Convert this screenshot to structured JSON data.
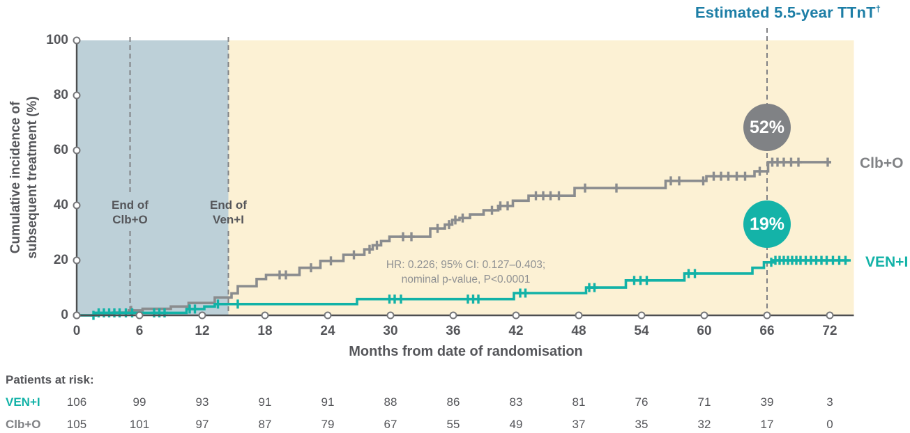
{
  "title": {
    "text": "Estimated 5.5-year TTnT",
    "superscript": "†"
  },
  "colors": {
    "ven_i": "#12b2a7",
    "clb_o": "#8a8c8e",
    "badge_ven": "#14b3a8",
    "badge_clb": "#808285",
    "shade_early": "#bdd0d8",
    "shade_late": "#fcf1d4",
    "title_blue": "#1d7ea6",
    "text_gray": "#55565a",
    "annotation_gray": "#8f9193",
    "axis": "#4d4e50",
    "dashed_line": "#808184",
    "tick_circle_stroke": "#76777a"
  },
  "chart_data": {
    "type": "line",
    "subtype": "step-cumulative-incidence",
    "title": "Estimated 5.5-year TTnT†",
    "xlabel": "Months from date of randomisation",
    "ylabel": "Cumulative incidence of subsequent treatment (%)",
    "xlim": [
      0,
      74.3
    ],
    "ylim": [
      0,
      100
    ],
    "x_ticks": [
      0,
      6,
      12,
      18,
      24,
      30,
      36,
      42,
      48,
      54,
      60,
      66,
      72
    ],
    "y_ticks": [
      0,
      20,
      40,
      60,
      80,
      100
    ],
    "grid": false,
    "legend_position": "right-of-curves",
    "shaded_periods": [
      {
        "name": "early-treatment-period",
        "from_month": 0,
        "to_month": 14.5,
        "color_key": "shade_early"
      },
      {
        "name": "post-treatment-period",
        "from_month": 14.5,
        "to_month": 74.3,
        "color_key": "shade_late"
      }
    ],
    "series": [
      {
        "name": "Clb+O",
        "color_key": "clb_o",
        "estimate_at_66_months_pct": 52,
        "steps": [
          [
            0,
            0
          ],
          [
            2,
            0.5
          ],
          [
            3.5,
            1
          ],
          [
            5,
            1.8
          ],
          [
            6.3,
            2.4
          ],
          [
            9,
            3.2
          ],
          [
            10.7,
            4.5
          ],
          [
            13.2,
            6.5
          ],
          [
            14.8,
            8
          ],
          [
            15.4,
            10.6
          ],
          [
            17.2,
            13.2
          ],
          [
            18.1,
            14.7
          ],
          [
            21.3,
            17.3
          ],
          [
            23.3,
            19.8
          ],
          [
            25.5,
            22
          ],
          [
            27.5,
            24
          ],
          [
            28.3,
            25.5
          ],
          [
            29.1,
            27
          ],
          [
            29.9,
            28.6
          ],
          [
            33.8,
            31.6
          ],
          [
            35.2,
            33
          ],
          [
            35.9,
            34.7
          ],
          [
            36.6,
            35.4
          ],
          [
            37.6,
            36.7
          ],
          [
            38.9,
            38.2
          ],
          [
            40.3,
            39.8
          ],
          [
            41.7,
            41.7
          ],
          [
            43.2,
            43.5
          ],
          [
            47.6,
            46.3
          ],
          [
            56.3,
            48.9
          ],
          [
            60.2,
            50.6
          ],
          [
            64.8,
            52.4
          ],
          [
            66.1,
            55.7
          ]
        ],
        "end_month": 72.1,
        "censor_months": [
          5.2,
          19.4,
          20,
          22.4,
          24.3,
          26.5,
          28,
          28.7,
          31.2,
          32,
          34.5,
          35.6,
          36.2,
          36.9,
          39.7,
          40.5,
          41.2,
          43.9,
          44.6,
          45.3,
          46.1,
          48.6,
          51.6,
          56.8,
          57.6,
          59.9,
          60.9,
          61.6,
          62.3,
          63.1,
          63.9,
          65.3,
          66.5,
          67,
          67.6,
          68.3,
          69,
          71.8
        ]
      },
      {
        "name": "VEN+I",
        "color_key": "ven_i",
        "estimate_at_66_months_pct": 19,
        "steps": [
          [
            0,
            0
          ],
          [
            1.8,
            0.9
          ],
          [
            10.5,
            2.3
          ],
          [
            12.2,
            3.2
          ],
          [
            13.2,
            4.1
          ],
          [
            26.8,
            5.9
          ],
          [
            41.8,
            8.1
          ],
          [
            48.7,
            10.1
          ],
          [
            52.5,
            12.7
          ],
          [
            58.1,
            15.2
          ],
          [
            64.6,
            17.3
          ],
          [
            65.7,
            19.3
          ],
          [
            66.6,
            20
          ]
        ],
        "end_month": 74,
        "censor_months": [
          1.6,
          2.1,
          2.6,
          3.1,
          3.6,
          4.1,
          4.7,
          5.3,
          7.4,
          7.9,
          8.4,
          10.8,
          11.3,
          13.5,
          15.4,
          29.9,
          30.4,
          31,
          37.4,
          37.9,
          38.4,
          42.4,
          42.9,
          49,
          49.5,
          53.3,
          53.9,
          54.5,
          58.5,
          59.1,
          66.4,
          66.8,
          67.2,
          67.6,
          68,
          68.4,
          68.8,
          69.2,
          69.7,
          70.2,
          70.7,
          71.2,
          71.7,
          72.3,
          72.9,
          73.5
        ]
      }
    ]
  },
  "y_axis": {
    "label_line1": "Cumulative incidence of",
    "label_line2": "subsequent treatment (%)"
  },
  "x_axis": {
    "label": "Months from date of randomisation"
  },
  "annotations": {
    "hr_note": {
      "line1": "HR: 0.226; 95% CI: 0.127–0.403;",
      "line2": "nominal p-value, P<0.0001"
    },
    "estimate_line_month": 66,
    "end_markers": [
      {
        "line1": "End of",
        "line2": "Clb+O",
        "month": 5.1
      },
      {
        "line1": "End of",
        "line2": "Ven+I",
        "month": 14.5
      }
    ],
    "badges": [
      {
        "value": "52%",
        "month": 66,
        "pct_position": 68.4,
        "color_key": "badge_clb"
      },
      {
        "value": "19%",
        "month": 66,
        "pct_position": 33.2,
        "color_key": "badge_ven"
      }
    ]
  },
  "series_end_labels": {
    "clbo": "Clb+O",
    "veni": "VEN+I"
  },
  "risk_table": {
    "header": "Patients at risk:",
    "columns_months": [
      0,
      6,
      12,
      18,
      24,
      30,
      36,
      42,
      48,
      54,
      60,
      66,
      72
    ],
    "rows": [
      {
        "label": "VEN+I",
        "values": [
          106,
          99,
          93,
          91,
          91,
          88,
          86,
          83,
          81,
          76,
          71,
          39,
          3
        ]
      },
      {
        "label": "Clb+O",
        "values": [
          105,
          101,
          97,
          87,
          79,
          67,
          55,
          49,
          37,
          35,
          32,
          17,
          0
        ]
      }
    ]
  }
}
